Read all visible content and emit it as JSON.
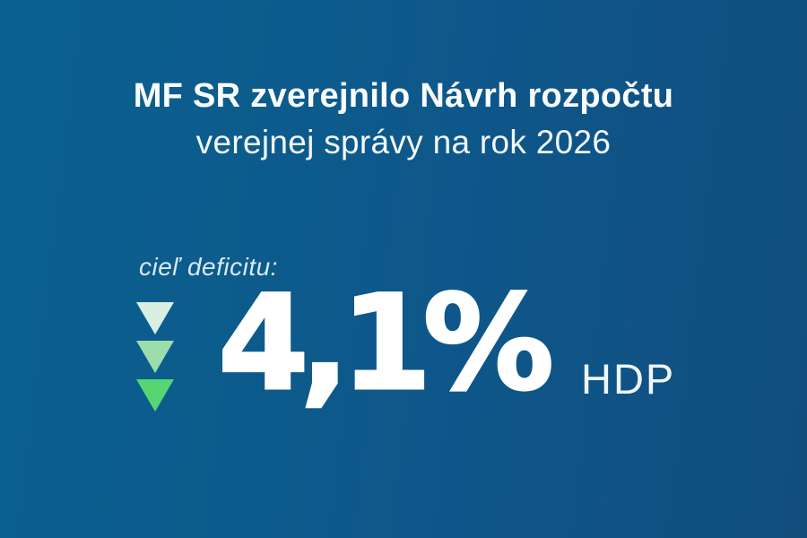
{
  "page": {
    "background_gradient_left": "#0a618f",
    "background_gradient_right": "#114e7e",
    "text_primary": "#ffffff",
    "label_color": "#d9e9f2"
  },
  "header": {
    "title_line1": "MF SR zverejnilo Návrh rozpočtu",
    "title_line2": "verejnej správy na rok 2026"
  },
  "deficit": {
    "label": "cieľ deficitu:",
    "value": "4,1%",
    "unit": "HDP",
    "arrows": {
      "direction": "down",
      "colors": [
        "#d9efe2",
        "#9ddcab",
        "#57d573"
      ]
    }
  }
}
